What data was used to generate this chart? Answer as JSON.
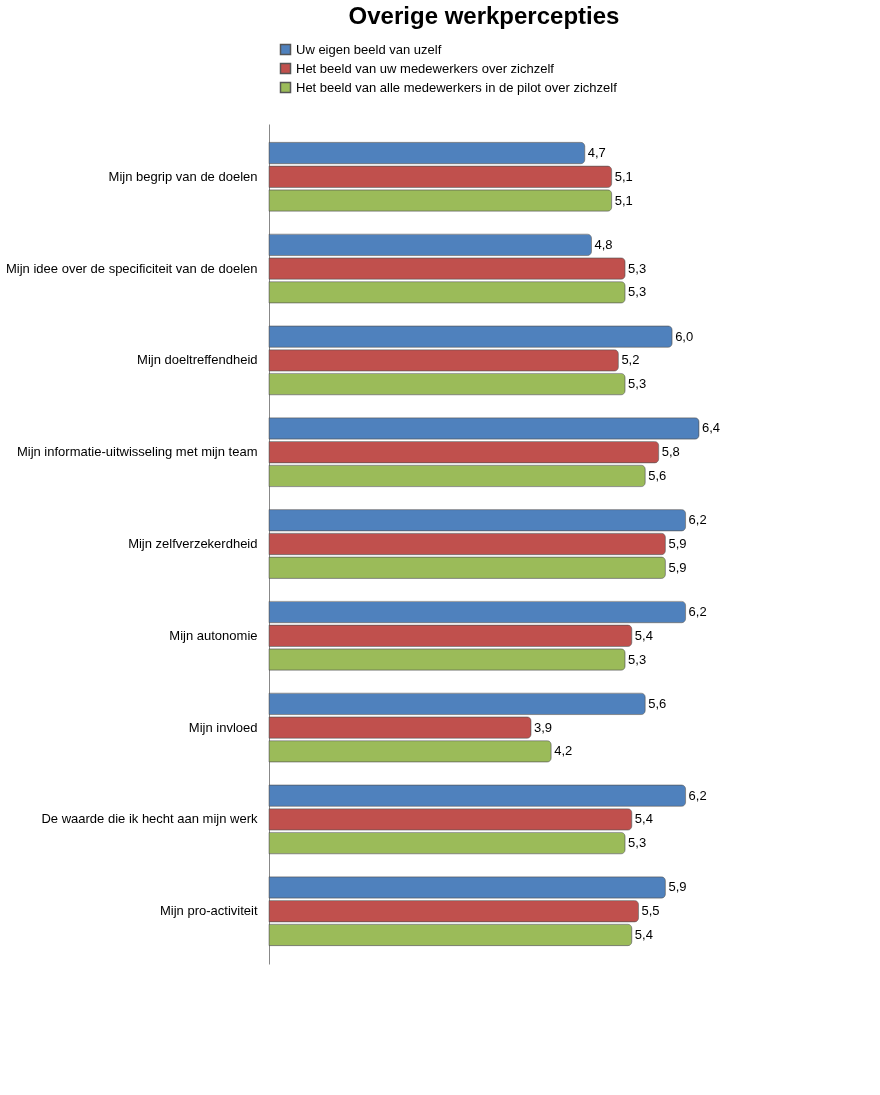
{
  "chart_data": {
    "type": "bar",
    "orientation": "horizontal",
    "title": "Overige werkpercepties",
    "categories": [
      "Mijn begrip van de doelen",
      "Mijn idee over de specificiteit van de doelen",
      "Mijn doeltreffendheid",
      "Mijn informatie-uitwisseling met mijn team",
      "Mijn zelfverzekerdheid",
      "Mijn autonomie",
      "Mijn invloed",
      "De waarde die ik hecht aan mijn werk",
      "Mijn pro-activiteit"
    ],
    "series": [
      {
        "name": "Uw eigen beeld van uzelf",
        "color": "#4f81bd",
        "values": [
          4.7,
          4.8,
          6.0,
          6.4,
          6.2,
          6.2,
          5.6,
          6.2,
          5.9
        ],
        "value_labels": [
          "4,7",
          "4,8",
          "6,0",
          "6,4",
          "6,2",
          "6,2",
          "5,6",
          "6,2",
          "5,9"
        ]
      },
      {
        "name": "Het beeld van uw medewerkers over zichzelf",
        "color": "#c0504d",
        "values": [
          5.1,
          5.3,
          5.2,
          5.8,
          5.9,
          5.4,
          3.9,
          5.4,
          5.5
        ],
        "value_labels": [
          "5,1",
          "5,3",
          "5,2",
          "5,8",
          "5,9",
          "5,4",
          "3,9",
          "5,4",
          "5,5"
        ]
      },
      {
        "name": "Het beeld van alle medewerkers in de pilot over zichzelf",
        "color": "#9bbb59",
        "values": [
          5.1,
          5.3,
          5.3,
          5.6,
          5.9,
          5.3,
          4.2,
          5.3,
          5.4
        ],
        "value_labels": [
          "5,1",
          "5,3",
          "5,3",
          "5,6",
          "5,9",
          "5,3",
          "4,2",
          "5,3",
          "5,4"
        ]
      }
    ],
    "legend": "top"
  }
}
